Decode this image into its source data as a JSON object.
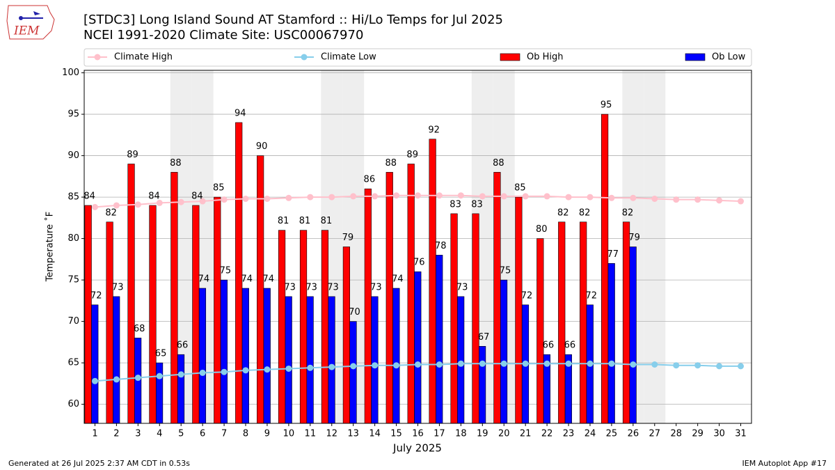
{
  "logo": "IEM",
  "footer_left": "Generated at 26 Jul 2025 2:37 AM CDT in 0.53s",
  "footer_right": "IEM Autoplot App #17",
  "chart_data": {
    "type": "bar",
    "title": "[STDC3] Long Island Sound  AT Stamford :: Hi/Lo Temps for Jul 2025",
    "subtitle": "NCEI 1991-2020 Climate Site: USC00067970",
    "x_label": "July 2025",
    "y_label": "Temperature ˚F",
    "categories": [
      "1",
      "2",
      "3",
      "4",
      "5",
      "6",
      "7",
      "8",
      "9",
      "10",
      "11",
      "12",
      "13",
      "14",
      "15",
      "16",
      "17",
      "18",
      "19",
      "20",
      "21",
      "22",
      "23",
      "24",
      "25",
      "26",
      "27",
      "28",
      "29",
      "30",
      "31"
    ],
    "shaded_categories": [
      "5",
      "6",
      "12",
      "13",
      "19",
      "20",
      "26",
      "27"
    ],
    "shade_color": "#eeeeee",
    "series": [
      {
        "name": "Climate High",
        "kind": "line",
        "color": "#ffc0cb",
        "values": [
          83.8,
          84.0,
          84.1,
          84.3,
          84.4,
          84.5,
          84.7,
          84.8,
          84.8,
          84.9,
          85.0,
          85.0,
          85.1,
          85.1,
          85.2,
          85.2,
          85.2,
          85.2,
          85.1,
          85.1,
          85.1,
          85.1,
          85.0,
          85.0,
          84.9,
          84.9,
          84.8,
          84.7,
          84.7,
          84.6,
          84.5
        ]
      },
      {
        "name": "Climate Low",
        "kind": "line",
        "color": "#87ceeb",
        "values": [
          62.8,
          63.0,
          63.2,
          63.4,
          63.6,
          63.8,
          63.9,
          64.1,
          64.2,
          64.3,
          64.4,
          64.5,
          64.6,
          64.7,
          64.7,
          64.8,
          64.8,
          64.9,
          64.9,
          64.9,
          64.9,
          64.9,
          64.9,
          64.9,
          64.9,
          64.8,
          64.8,
          64.7,
          64.7,
          64.6,
          64.6
        ]
      },
      {
        "name": "Ob High",
        "kind": "bar",
        "color": "#ff0000",
        "values": [
          84,
          82,
          89,
          84,
          88,
          84,
          85,
          94,
          90,
          81,
          81,
          81,
          79,
          86,
          88,
          89,
          92,
          83,
          83,
          88,
          85,
          80,
          82,
          82,
          95,
          82,
          null,
          null,
          null,
          null,
          null
        ]
      },
      {
        "name": "Ob Low",
        "kind": "bar",
        "color": "#0000ff",
        "values": [
          72,
          73,
          68,
          65,
          66,
          74,
          75,
          74,
          74,
          73,
          73,
          73,
          70,
          73,
          74,
          76,
          78,
          73,
          67,
          75,
          72,
          66,
          66,
          72,
          77,
          79,
          null,
          null,
          null,
          null,
          null
        ]
      }
    ],
    "ylim": [
      57.7,
      100.3
    ],
    "yticks": [
      60,
      65,
      70,
      75,
      80,
      85,
      90,
      95,
      100
    ],
    "grid": true,
    "legend": "top"
  }
}
